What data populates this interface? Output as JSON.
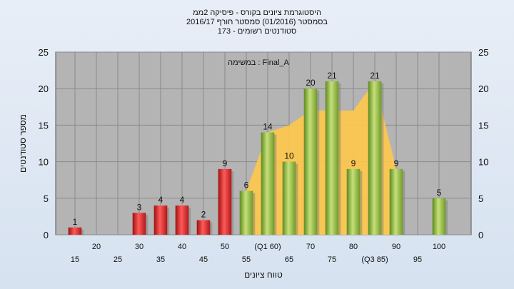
{
  "title": {
    "line1": "היסטוגרמת ציונים בקורס - פיסיקה 2ממ",
    "line2": "בסמסטר  (01/2016)  סמסטר חורף 2016/17",
    "line3": "סטודנטים רשומים - 173"
  },
  "chart_data": {
    "type": "bar",
    "title": "היסטוגרמת ציונים בקורס - פיסיקה 2ממ",
    "task_label": "במשימה : Final_A",
    "xlabel": "טווח ציונים",
    "ylabel": "מספר סטודנטים",
    "ylim": [
      0,
      25
    ],
    "yticks": [
      0,
      5,
      10,
      15,
      20,
      25
    ],
    "grid": true,
    "categories": [
      "15",
      "20",
      "25",
      "30",
      "35",
      "40",
      "45",
      "50",
      "55",
      "60",
      "65",
      "70",
      "75",
      "80",
      "85",
      "90",
      "95",
      "100"
    ],
    "x_tick_labels": [
      "15",
      "20",
      "25",
      "30",
      "35",
      "40",
      "45",
      "50",
      "55",
      "(Q1 60)",
      "65",
      "70",
      "75",
      "80",
      "(Q3 85)",
      "90",
      "95",
      "100"
    ],
    "values": [
      1,
      0,
      0,
      3,
      4,
      4,
      2,
      9,
      6,
      14,
      10,
      20,
      21,
      9,
      21,
      9,
      0,
      5
    ],
    "bar_colors": [
      "red",
      "red",
      "red",
      "red",
      "red",
      "red",
      "red",
      "red",
      "green",
      "green",
      "green",
      "green",
      "green",
      "green",
      "green",
      "green",
      "green",
      "green"
    ],
    "interquartile_area": {
      "x": [
        "55",
        "60",
        "65",
        "70",
        "75",
        "80",
        "85",
        "90"
      ],
      "values": [
        6,
        14,
        15,
        17,
        17,
        17,
        21,
        9
      ]
    },
    "colors": {
      "fail_bar": "#d42a2a",
      "pass_bar": "#8bb33a",
      "iqr_area": "#ffc84a",
      "plot_bg": "#b4b4b4"
    }
  }
}
